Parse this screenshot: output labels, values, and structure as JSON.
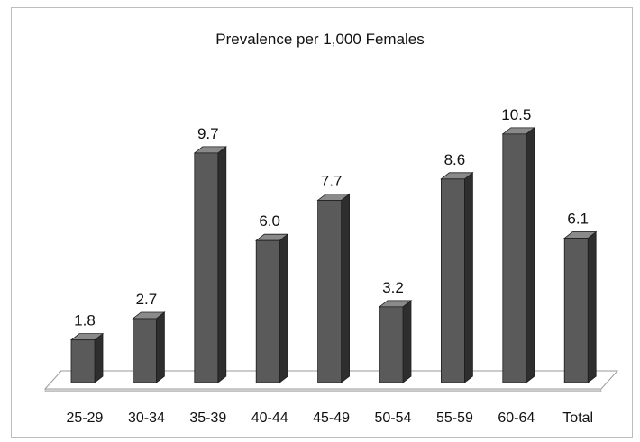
{
  "chart_data": {
    "type": "bar",
    "title": "Prevalence per 1,000 Females",
    "categories": [
      "25-29",
      "30-34",
      "35-39",
      "40-44",
      "45-49",
      "50-54",
      "55-59",
      "60-64",
      "Total"
    ],
    "values": [
      1.8,
      2.7,
      9.7,
      6.0,
      7.7,
      3.2,
      8.6,
      10.5,
      6.1
    ],
    "data_labels": [
      "1.8",
      "2.7",
      "9.7",
      "6.0",
      "7.7",
      "3.2",
      "8.6",
      "10.5",
      "6.1"
    ],
    "xlabel": "",
    "ylabel": "",
    "ylim": [
      0,
      11
    ],
    "grid": false,
    "legend": "none",
    "style": "3d-column",
    "colors": {
      "bar_front": "#5a5a5a",
      "bar_side": "#2e2e2e",
      "bar_top": "#8a8a8a",
      "floor": "#ffffff",
      "floor_edge": "#9a9a9a",
      "frame": "#bdbdbd"
    }
  }
}
